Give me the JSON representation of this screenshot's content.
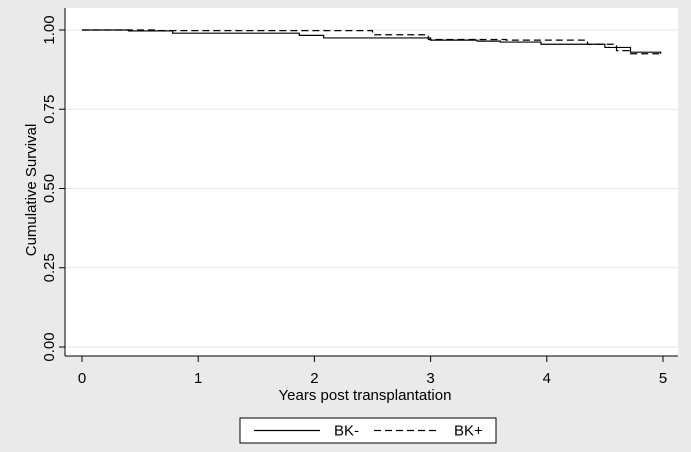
{
  "chart_data": {
    "type": "line",
    "title": "",
    "xlabel": "Years post transplantation",
    "ylabel": "Cumulative Survival",
    "xlim": [
      0,
      5
    ],
    "ylim": [
      0,
      1
    ],
    "x_ticks": [
      0,
      1,
      2,
      3,
      4,
      5
    ],
    "x_tick_labels": [
      "0",
      "1",
      "2",
      "3",
      "4",
      "5"
    ],
    "y_ticks": [
      0,
      0.25,
      0.5,
      0.75,
      1.0
    ],
    "y_tick_labels": [
      "0.00",
      "0.25",
      "0.50",
      "0.75",
      "1.00"
    ],
    "grid": true,
    "step": true,
    "legend_position": "bottom",
    "series": [
      {
        "name": "BK-",
        "line_style": "solid",
        "color": "#000000",
        "x": [
          0,
          0.4,
          0.78,
          1.87,
          2.08,
          3.0,
          3.4,
          3.6,
          3.95,
          4.5,
          4.72,
          4.98
        ],
        "y": [
          1.0,
          0.997,
          0.99,
          0.983,
          0.975,
          0.968,
          0.965,
          0.962,
          0.955,
          0.945,
          0.93,
          0.925
        ]
      },
      {
        "name": "BK+",
        "line_style": "dashed",
        "color": "#000000",
        "x": [
          0,
          0.65,
          2.5,
          2.98,
          3.65,
          4.35,
          4.6,
          4.72,
          4.98
        ],
        "y": [
          1.0,
          0.998,
          0.985,
          0.97,
          0.968,
          0.955,
          0.935,
          0.925,
          0.925
        ]
      }
    ]
  }
}
